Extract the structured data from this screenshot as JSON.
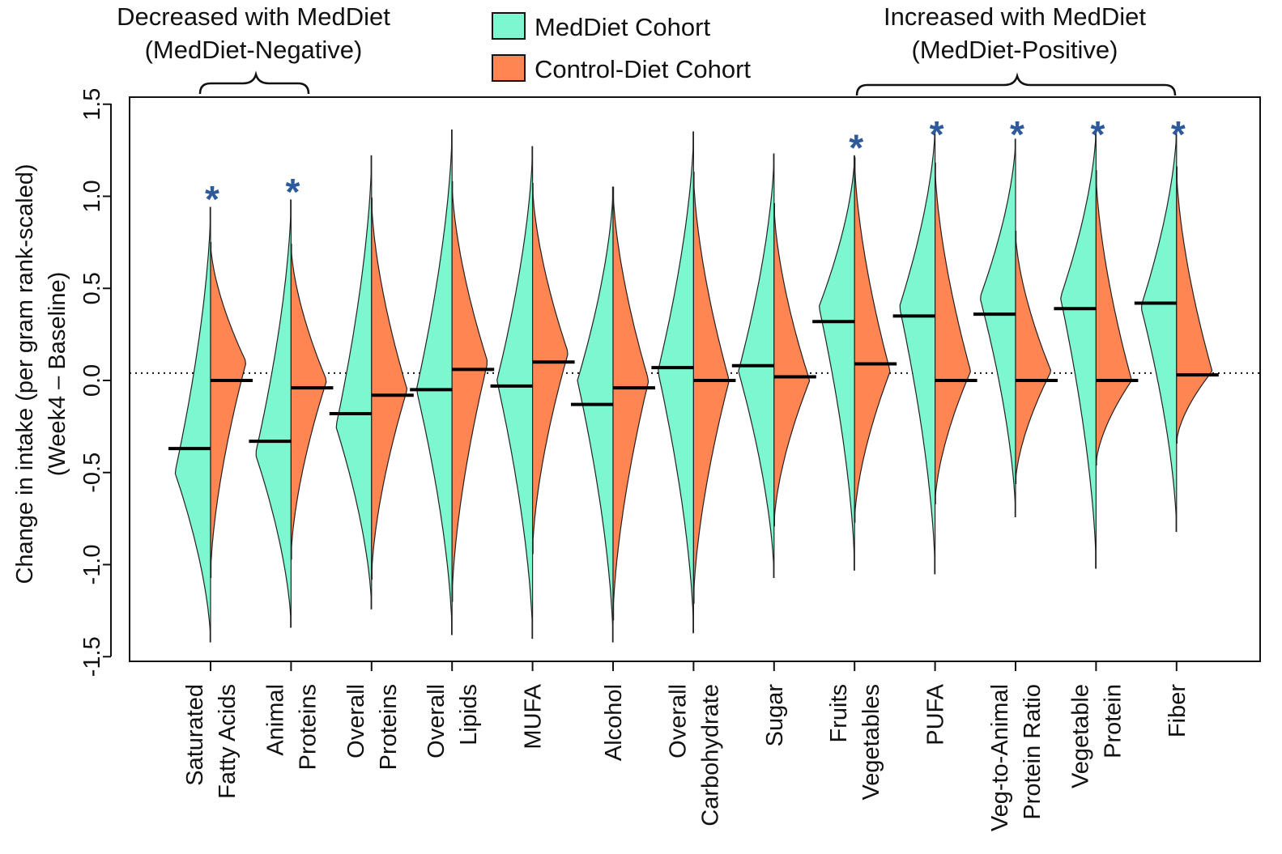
{
  "chart_data": {
    "type": "split-violin",
    "ylabel_line1": "Change in intake (per gram rank-scaled)",
    "ylabel_line2": "(Week4 – Baseline)",
    "ylim": [
      -1.5,
      1.5
    ],
    "yticks": [
      -1.5,
      -1.0,
      -0.5,
      0.0,
      0.5,
      1.0,
      1.5
    ],
    "ytick_labels": [
      "-1.5",
      "-1.0",
      "-0.5",
      "0.0",
      "0.5",
      "1.0",
      "1.5"
    ],
    "reference_line": 0.04,
    "legend": [
      {
        "name": "MedDiet Cohort",
        "color": "#7cf7cf"
      },
      {
        "name": "Control-Diet Cohort",
        "color": "#ff8552"
      }
    ],
    "groups": {
      "negative": {
        "line1": "Decreased with MedDiet",
        "line2": "(MedDiet-Negative)"
      },
      "positive": {
        "line1": "Increased with MedDiet",
        "line2": "(MedDiet-Positive)"
      }
    },
    "significance_marker": "*",
    "categories": [
      {
        "line1": "Saturated",
        "line2": "Fatty Acids",
        "med": {
          "median": -0.37,
          "min": -1.42,
          "max": 0.94,
          "peak": -0.5
        },
        "ctrl": {
          "median": 0.0,
          "min": -1.07,
          "max": 0.75,
          "peak": 0.1
        },
        "significant": true
      },
      {
        "line1": "Animal",
        "line2": "Proteins",
        "med": {
          "median": -0.33,
          "min": -1.34,
          "max": 0.98,
          "peak": -0.4
        },
        "ctrl": {
          "median": -0.04,
          "min": -0.97,
          "max": 0.74,
          "peak": 0.0
        },
        "significant": true
      },
      {
        "line1": "Overall",
        "line2": "Proteins",
        "med": {
          "median": -0.18,
          "min": -1.24,
          "max": 1.22,
          "peak": -0.25
        },
        "ctrl": {
          "median": -0.08,
          "min": -1.08,
          "max": 0.99,
          "peak": -0.05
        },
        "significant": false
      },
      {
        "line1": "Overall",
        "line2": "Lipids",
        "med": {
          "median": -0.05,
          "min": -1.38,
          "max": 1.36,
          "peak": -0.05
        },
        "ctrl": {
          "median": 0.06,
          "min": -1.2,
          "max": 1.08,
          "peak": 0.1
        },
        "significant": false
      },
      {
        "line1": "MUFA",
        "line2": "",
        "med": {
          "median": -0.03,
          "min": -1.4,
          "max": 1.27,
          "peak": 0.0
        },
        "ctrl": {
          "median": 0.1,
          "min": -0.94,
          "max": 1.07,
          "peak": 0.15
        },
        "significant": false
      },
      {
        "line1": "Alcohol",
        "line2": "",
        "med": {
          "median": -0.13,
          "min": -1.42,
          "max": 1.05,
          "peak": 0.0
        },
        "ctrl": {
          "median": -0.04,
          "min": -1.3,
          "max": 1.05,
          "peak": 0.0
        },
        "significant": false
      },
      {
        "line1": "Overall",
        "line2": "Carbohydrate",
        "med": {
          "median": 0.07,
          "min": -1.37,
          "max": 1.35,
          "peak": 0.05
        },
        "ctrl": {
          "median": 0.0,
          "min": -1.21,
          "max": 1.13,
          "peak": 0.0
        },
        "significant": false
      },
      {
        "line1": "Sugar",
        "line2": "",
        "med": {
          "median": 0.08,
          "min": -1.07,
          "max": 1.23,
          "peak": 0.05
        },
        "ctrl": {
          "median": 0.02,
          "min": -0.79,
          "max": 0.96,
          "peak": 0.0
        },
        "significant": false
      },
      {
        "line1": "Fruits",
        "line2": "Vegetables",
        "med": {
          "median": 0.32,
          "min": -1.03,
          "max": 1.22,
          "peak": 0.4
        },
        "ctrl": {
          "median": 0.09,
          "min": -0.77,
          "max": 1.21,
          "peak": 0.05
        },
        "significant": true
      },
      {
        "line1": "PUFA",
        "line2": "",
        "med": {
          "median": 0.35,
          "min": -1.05,
          "max": 1.38,
          "peak": 0.4
        },
        "ctrl": {
          "median": 0.0,
          "min": -0.67,
          "max": 1.18,
          "peak": 0.05
        },
        "significant": true
      },
      {
        "line1": "Veg-to-Animal",
        "line2": "Protein Ratio",
        "med": {
          "median": 0.36,
          "min": -0.74,
          "max": 1.31,
          "peak": 0.45
        },
        "ctrl": {
          "median": 0.0,
          "min": -0.56,
          "max": 0.81,
          "peak": 0.05
        },
        "significant": true
      },
      {
        "line1": "Vegetable",
        "line2": "Protein",
        "med": {
          "median": 0.39,
          "min": -1.02,
          "max": 1.37,
          "peak": 0.45
        },
        "ctrl": {
          "median": 0.0,
          "min": -0.46,
          "max": 1.14,
          "peak": 0.0
        },
        "significant": true
      },
      {
        "line1": "Fiber",
        "line2": "",
        "med": {
          "median": 0.42,
          "min": -0.82,
          "max": 1.37,
          "peak": 0.4
        },
        "ctrl": {
          "median": 0.03,
          "min": -0.34,
          "max": 1.16,
          "peak": 0.05
        },
        "significant": true
      }
    ]
  }
}
